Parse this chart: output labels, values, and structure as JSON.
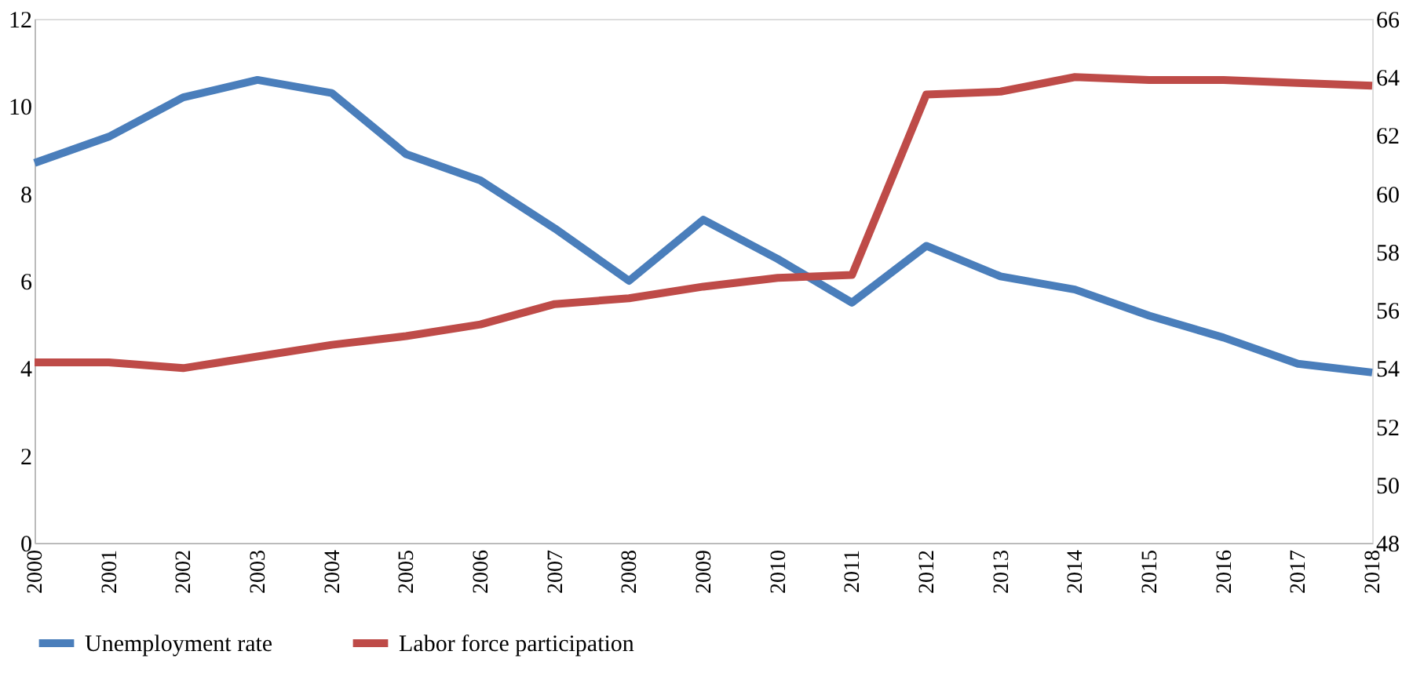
{
  "chart_data": {
    "type": "line",
    "categories": [
      "2000",
      "2001",
      "2002",
      "2003",
      "2004",
      "2005",
      "2006",
      "2007",
      "2008",
      "2009",
      "2010",
      "2011",
      "2012",
      "2013",
      "2014",
      "2015",
      "2016",
      "2017",
      "2018"
    ],
    "series": [
      {
        "name": "Unemployment rate",
        "color": "#4a7ebb",
        "values": [
          8.7,
          9.3,
          10.2,
          10.6,
          10.3,
          8.9,
          8.3,
          7.2,
          6.0,
          7.4,
          6.5,
          5.5,
          6.8,
          6.1,
          5.8,
          5.2,
          4.7,
          4.1,
          3.9
        ]
      },
      {
        "name": "Labor force participation",
        "color": "#be4b48",
        "axis": "y2",
        "values": [
          54.2,
          54.2,
          54.0,
          54.4,
          54.8,
          55.1,
          55.5,
          56.2,
          56.4,
          56.8,
          57.1,
          57.2,
          63.4,
          63.5,
          64.0,
          63.9,
          63.9,
          63.8,
          63.7
        ]
      }
    ],
    "ylim": [
      0,
      12
    ],
    "yticks": [
      0,
      2,
      4,
      6,
      8,
      10,
      12
    ],
    "y2lim": [
      48,
      66
    ],
    "y2ticks": [
      48,
      50,
      52,
      54,
      56,
      58,
      60,
      62,
      64,
      66
    ],
    "grid": false,
    "legend": "bottom",
    "marker": "none",
    "line_style": "solid"
  }
}
